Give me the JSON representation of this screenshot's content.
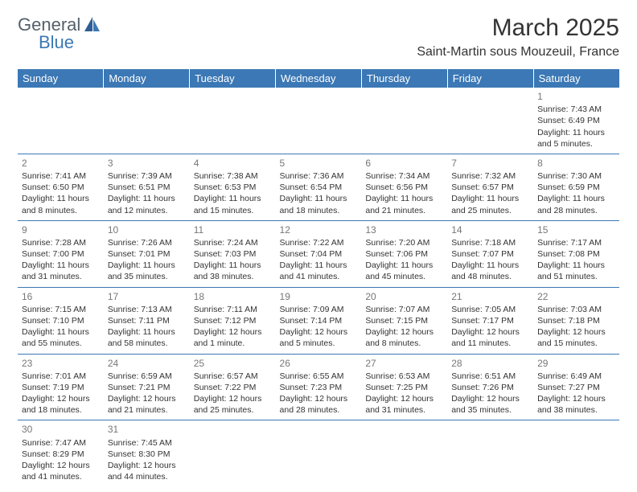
{
  "logo": {
    "text1": "General",
    "text2": "Blue"
  },
  "title": "March 2025",
  "location": "Saint-Martin sous Mouzeuil, France",
  "colors": {
    "header_bg": "#3b78b5",
    "header_text": "#ffffff",
    "border": "#3b78b5",
    "daynum": "#777777",
    "body_text": "#333333"
  },
  "weekdays": [
    "Sunday",
    "Monday",
    "Tuesday",
    "Wednesday",
    "Thursday",
    "Friday",
    "Saturday"
  ],
  "weeks": [
    [
      null,
      null,
      null,
      null,
      null,
      null,
      {
        "day": "1",
        "sunrise": "Sunrise: 7:43 AM",
        "sunset": "Sunset: 6:49 PM",
        "day1": "Daylight: 11 hours",
        "day2": "and 5 minutes."
      }
    ],
    [
      {
        "day": "2",
        "sunrise": "Sunrise: 7:41 AM",
        "sunset": "Sunset: 6:50 PM",
        "day1": "Daylight: 11 hours",
        "day2": "and 8 minutes."
      },
      {
        "day": "3",
        "sunrise": "Sunrise: 7:39 AM",
        "sunset": "Sunset: 6:51 PM",
        "day1": "Daylight: 11 hours",
        "day2": "and 12 minutes."
      },
      {
        "day": "4",
        "sunrise": "Sunrise: 7:38 AM",
        "sunset": "Sunset: 6:53 PM",
        "day1": "Daylight: 11 hours",
        "day2": "and 15 minutes."
      },
      {
        "day": "5",
        "sunrise": "Sunrise: 7:36 AM",
        "sunset": "Sunset: 6:54 PM",
        "day1": "Daylight: 11 hours",
        "day2": "and 18 minutes."
      },
      {
        "day": "6",
        "sunrise": "Sunrise: 7:34 AM",
        "sunset": "Sunset: 6:56 PM",
        "day1": "Daylight: 11 hours",
        "day2": "and 21 minutes."
      },
      {
        "day": "7",
        "sunrise": "Sunrise: 7:32 AM",
        "sunset": "Sunset: 6:57 PM",
        "day1": "Daylight: 11 hours",
        "day2": "and 25 minutes."
      },
      {
        "day": "8",
        "sunrise": "Sunrise: 7:30 AM",
        "sunset": "Sunset: 6:59 PM",
        "day1": "Daylight: 11 hours",
        "day2": "and 28 minutes."
      }
    ],
    [
      {
        "day": "9",
        "sunrise": "Sunrise: 7:28 AM",
        "sunset": "Sunset: 7:00 PM",
        "day1": "Daylight: 11 hours",
        "day2": "and 31 minutes."
      },
      {
        "day": "10",
        "sunrise": "Sunrise: 7:26 AM",
        "sunset": "Sunset: 7:01 PM",
        "day1": "Daylight: 11 hours",
        "day2": "and 35 minutes."
      },
      {
        "day": "11",
        "sunrise": "Sunrise: 7:24 AM",
        "sunset": "Sunset: 7:03 PM",
        "day1": "Daylight: 11 hours",
        "day2": "and 38 minutes."
      },
      {
        "day": "12",
        "sunrise": "Sunrise: 7:22 AM",
        "sunset": "Sunset: 7:04 PM",
        "day1": "Daylight: 11 hours",
        "day2": "and 41 minutes."
      },
      {
        "day": "13",
        "sunrise": "Sunrise: 7:20 AM",
        "sunset": "Sunset: 7:06 PM",
        "day1": "Daylight: 11 hours",
        "day2": "and 45 minutes."
      },
      {
        "day": "14",
        "sunrise": "Sunrise: 7:18 AM",
        "sunset": "Sunset: 7:07 PM",
        "day1": "Daylight: 11 hours",
        "day2": "and 48 minutes."
      },
      {
        "day": "15",
        "sunrise": "Sunrise: 7:17 AM",
        "sunset": "Sunset: 7:08 PM",
        "day1": "Daylight: 11 hours",
        "day2": "and 51 minutes."
      }
    ],
    [
      {
        "day": "16",
        "sunrise": "Sunrise: 7:15 AM",
        "sunset": "Sunset: 7:10 PM",
        "day1": "Daylight: 11 hours",
        "day2": "and 55 minutes."
      },
      {
        "day": "17",
        "sunrise": "Sunrise: 7:13 AM",
        "sunset": "Sunset: 7:11 PM",
        "day1": "Daylight: 11 hours",
        "day2": "and 58 minutes."
      },
      {
        "day": "18",
        "sunrise": "Sunrise: 7:11 AM",
        "sunset": "Sunset: 7:12 PM",
        "day1": "Daylight: 12 hours",
        "day2": "and 1 minute."
      },
      {
        "day": "19",
        "sunrise": "Sunrise: 7:09 AM",
        "sunset": "Sunset: 7:14 PM",
        "day1": "Daylight: 12 hours",
        "day2": "and 5 minutes."
      },
      {
        "day": "20",
        "sunrise": "Sunrise: 7:07 AM",
        "sunset": "Sunset: 7:15 PM",
        "day1": "Daylight: 12 hours",
        "day2": "and 8 minutes."
      },
      {
        "day": "21",
        "sunrise": "Sunrise: 7:05 AM",
        "sunset": "Sunset: 7:17 PM",
        "day1": "Daylight: 12 hours",
        "day2": "and 11 minutes."
      },
      {
        "day": "22",
        "sunrise": "Sunrise: 7:03 AM",
        "sunset": "Sunset: 7:18 PM",
        "day1": "Daylight: 12 hours",
        "day2": "and 15 minutes."
      }
    ],
    [
      {
        "day": "23",
        "sunrise": "Sunrise: 7:01 AM",
        "sunset": "Sunset: 7:19 PM",
        "day1": "Daylight: 12 hours",
        "day2": "and 18 minutes."
      },
      {
        "day": "24",
        "sunrise": "Sunrise: 6:59 AM",
        "sunset": "Sunset: 7:21 PM",
        "day1": "Daylight: 12 hours",
        "day2": "and 21 minutes."
      },
      {
        "day": "25",
        "sunrise": "Sunrise: 6:57 AM",
        "sunset": "Sunset: 7:22 PM",
        "day1": "Daylight: 12 hours",
        "day2": "and 25 minutes."
      },
      {
        "day": "26",
        "sunrise": "Sunrise: 6:55 AM",
        "sunset": "Sunset: 7:23 PM",
        "day1": "Daylight: 12 hours",
        "day2": "and 28 minutes."
      },
      {
        "day": "27",
        "sunrise": "Sunrise: 6:53 AM",
        "sunset": "Sunset: 7:25 PM",
        "day1": "Daylight: 12 hours",
        "day2": "and 31 minutes."
      },
      {
        "day": "28",
        "sunrise": "Sunrise: 6:51 AM",
        "sunset": "Sunset: 7:26 PM",
        "day1": "Daylight: 12 hours",
        "day2": "and 35 minutes."
      },
      {
        "day": "29",
        "sunrise": "Sunrise: 6:49 AM",
        "sunset": "Sunset: 7:27 PM",
        "day1": "Daylight: 12 hours",
        "day2": "and 38 minutes."
      }
    ],
    [
      {
        "day": "30",
        "sunrise": "Sunrise: 7:47 AM",
        "sunset": "Sunset: 8:29 PM",
        "day1": "Daylight: 12 hours",
        "day2": "and 41 minutes."
      },
      {
        "day": "31",
        "sunrise": "Sunrise: 7:45 AM",
        "sunset": "Sunset: 8:30 PM",
        "day1": "Daylight: 12 hours",
        "day2": "and 44 minutes."
      },
      null,
      null,
      null,
      null,
      null
    ]
  ]
}
